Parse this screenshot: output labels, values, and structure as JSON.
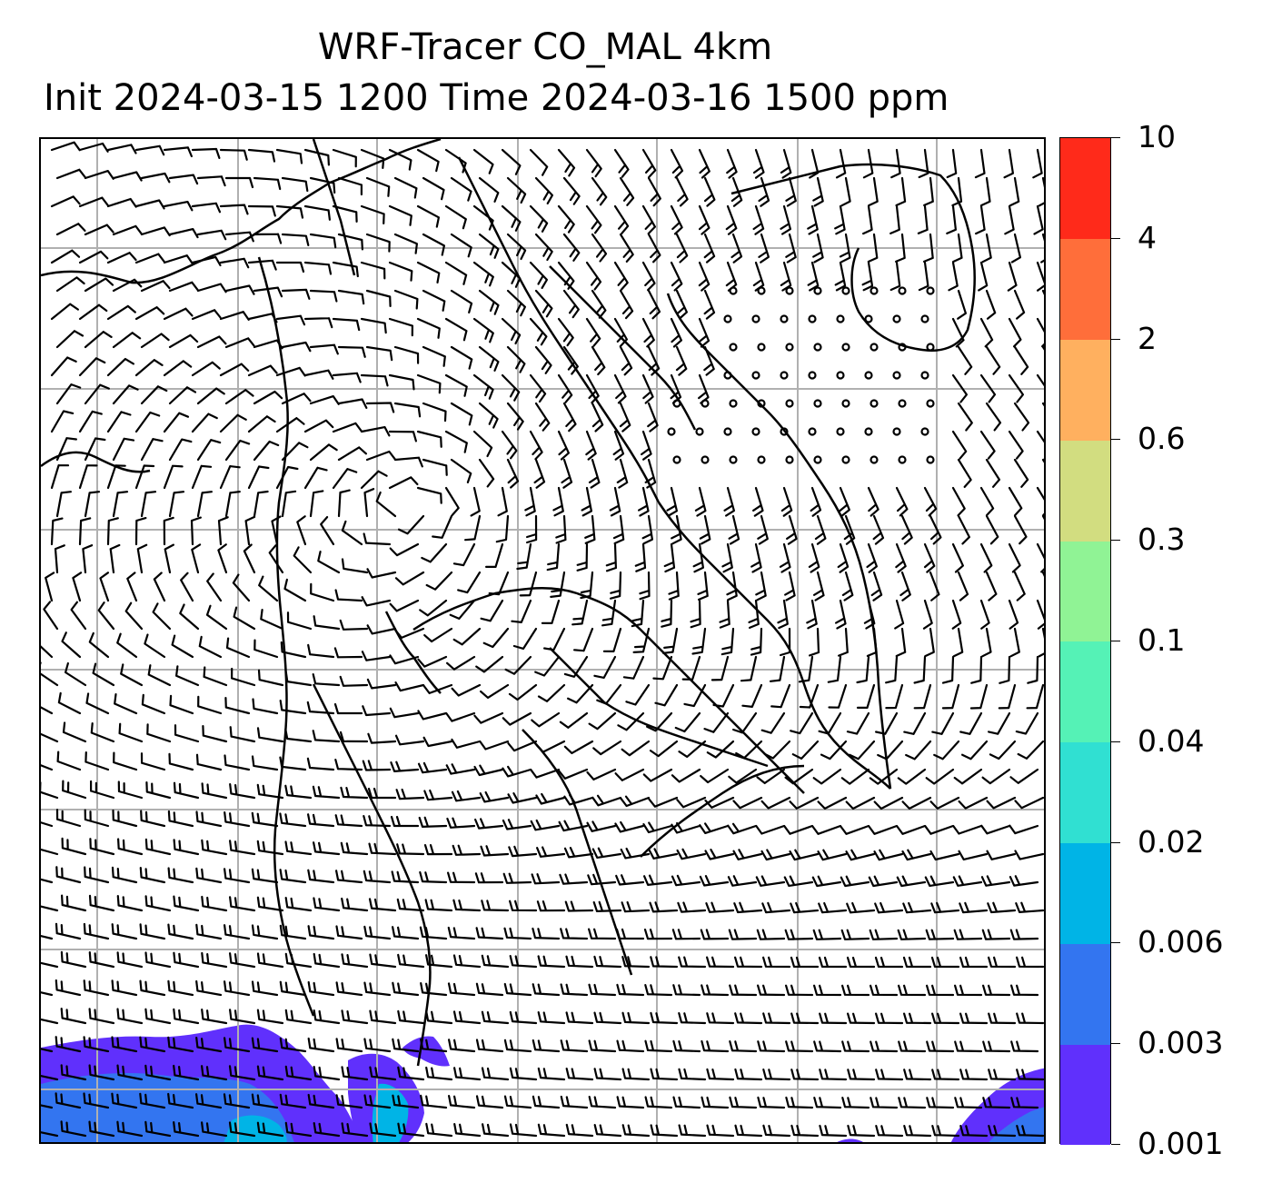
{
  "title": {
    "line1": "WRF-Tracer CO_MAL 4km",
    "line2": "Init 2024-03-15 1200 Time 2024-03-16 1500 ppm"
  },
  "colorbar": {
    "tick_labels": [
      "0.001",
      "0.003",
      "0.006",
      "0.02",
      "0.04",
      "0.1",
      "0.3",
      "0.6",
      "2",
      "4",
      "10"
    ],
    "colors": [
      "#6030fc",
      "#3375f0",
      "#00b4e6",
      "#30e0d2",
      "#55f2b6",
      "#90f395",
      "#d2dd80",
      "#ffb05f",
      "#ff6e3a",
      "#ff2a1a"
    ]
  },
  "map": {
    "gridlines": true,
    "gridline_color": "#b0b0b0",
    "wind_field": "wind barbs",
    "tracer_field": "CO_MAL"
  }
}
